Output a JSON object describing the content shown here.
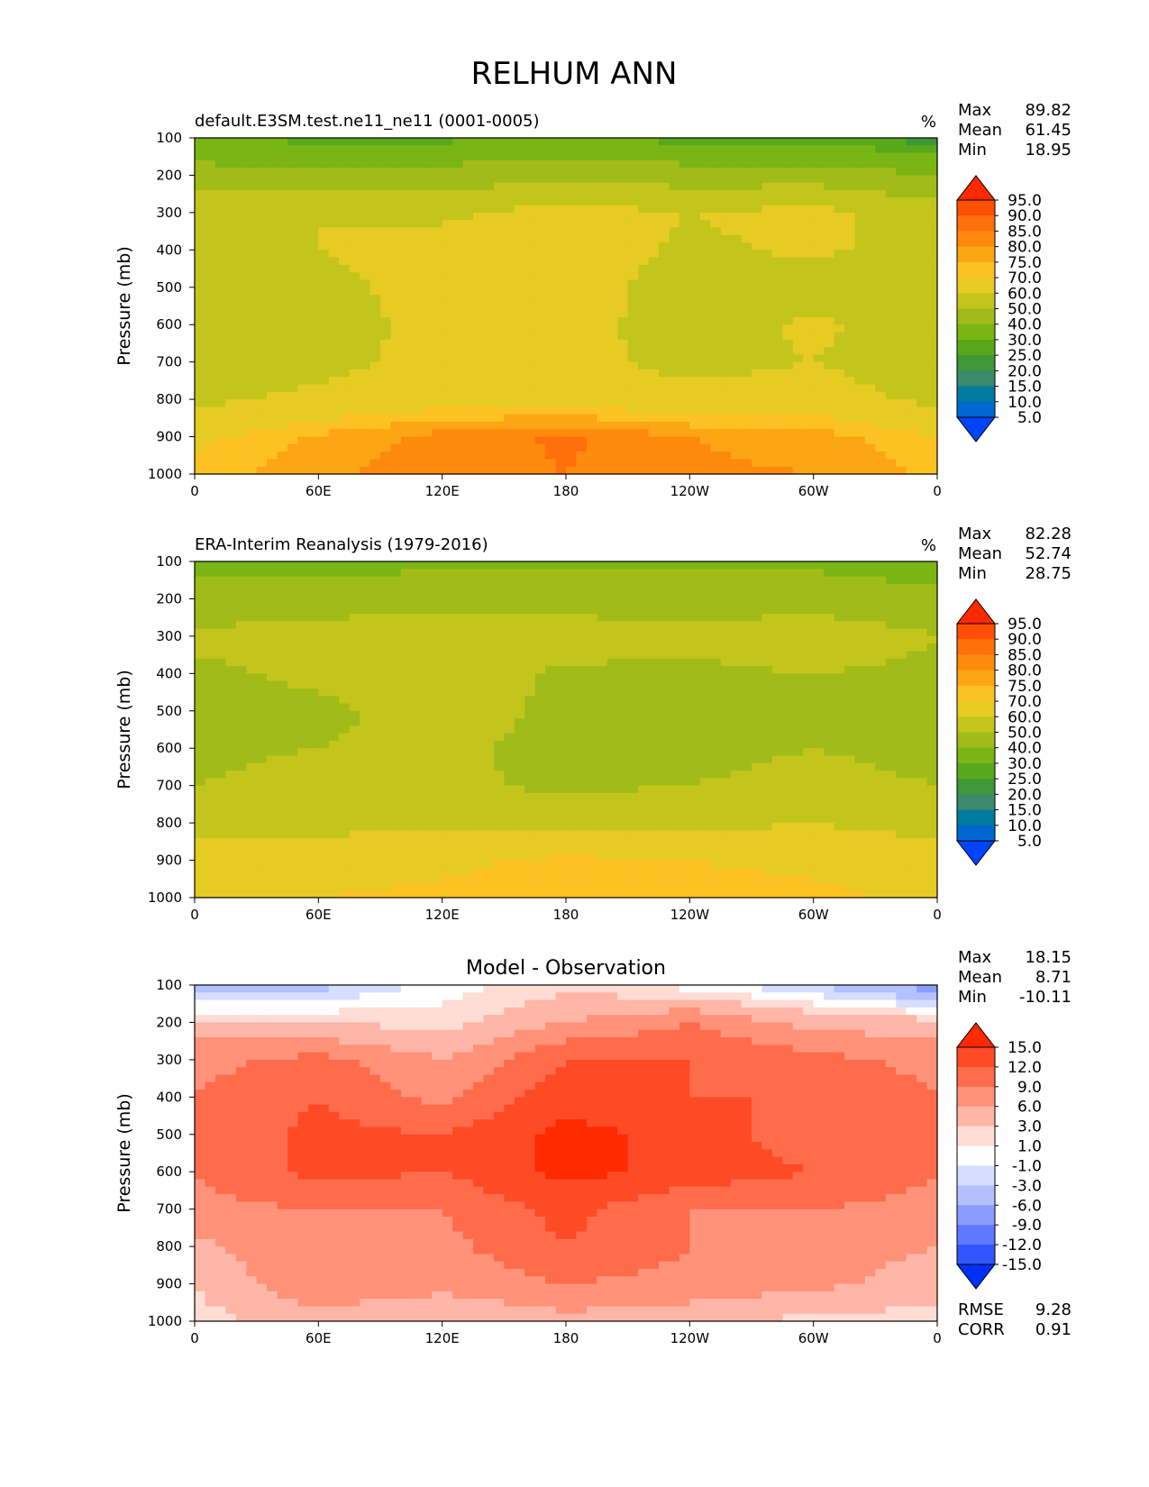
{
  "figure_title": "RELHUM ANN",
  "ylabel": "Pressure (mb)",
  "x_ticks": [
    "0",
    "60E",
    "120E",
    "180",
    "120W",
    "60W",
    "0"
  ],
  "y_ticks": [
    "100",
    "200",
    "300",
    "400",
    "500",
    "600",
    "700",
    "800",
    "900",
    "1000"
  ],
  "colors": {
    "rh_scale": [
      "#0044ff",
      "#0067d2",
      "#007ba0",
      "#3b8a6b",
      "#3f9737",
      "#57a81b",
      "#79b515",
      "#a1bc18",
      "#c4c51c",
      "#e6cb23",
      "#fcc221",
      "#fda514",
      "#fe8a0d",
      "#ff700b",
      "#ff4f07",
      "#ff2900"
    ],
    "diff_scale": [
      "#0030ff",
      "#2f55ff",
      "#5c79ff",
      "#8a9dff",
      "#b4c1ff",
      "#d6deff",
      "#ffffff",
      "#ffdcd4",
      "#ffb6a6",
      "#ff9279",
      "#ff6c4c",
      "#ff4a26",
      "#ff2a00"
    ]
  },
  "chart_data": [
    {
      "type": "heatmap",
      "name": "test",
      "title": "default.E3SM.test.ne11_ne11 (0001-0005)",
      "units": "%",
      "stats": {
        "max_label": "Max",
        "max": "89.82",
        "mean_label": "Mean",
        "mean": "61.45",
        "min_label": "Min",
        "min": "18.95"
      },
      "x": [
        0,
        60,
        120,
        180,
        240,
        300,
        360
      ],
      "x_tick_labels": [
        "0",
        "60E",
        "120E",
        "180",
        "120W",
        "60W",
        "0"
      ],
      "y": [
        100,
        200,
        300,
        400,
        500,
        600,
        700,
        800,
        900,
        1000
      ],
      "z": [
        [
          30,
          28,
          28,
          32,
          27,
          27,
          22
        ],
        [
          45,
          42,
          44,
          48,
          45,
          45,
          40
        ],
        [
          55,
          60,
          58,
          64,
          60,
          63,
          55
        ],
        [
          55,
          60,
          64,
          66,
          58,
          62,
          55
        ],
        [
          54,
          57,
          64,
          65,
          55,
          55,
          54
        ],
        [
          54,
          56,
          63,
          64,
          55,
          62,
          54
        ],
        [
          56,
          57,
          63,
          63,
          57,
          60,
          55
        ],
        [
          58,
          62,
          66,
          66,
          63,
          64,
          58
        ],
        [
          68,
          76,
          82,
          86,
          80,
          78,
          70
        ],
        [
          72,
          79,
          83,
          85,
          81,
          80,
          74
        ]
      ],
      "ylim": [
        1000,
        100
      ],
      "xlim": [
        0,
        360
      ],
      "colorbar_levels": [
        "95.0",
        "90.0",
        "85.0",
        "80.0",
        "75.0",
        "70.0",
        "60.0",
        "50.0",
        "40.0",
        "30.0",
        "25.0",
        "20.0",
        "15.0",
        "10.0",
        "5.0"
      ]
    },
    {
      "type": "heatmap",
      "name": "reference",
      "title": "ERA-Interim Reanalysis (1979-2016)",
      "units": "%",
      "stats": {
        "max_label": "Max",
        "max": "82.28",
        "mean_label": "Mean",
        "mean": "52.74",
        "min_label": "Min",
        "min": "28.75"
      },
      "x": [
        0,
        60,
        120,
        180,
        240,
        300,
        360
      ],
      "x_tick_labels": [
        "0",
        "60E",
        "120E",
        "180",
        "120W",
        "60W",
        "0"
      ],
      "y": [
        100,
        200,
        300,
        400,
        500,
        600,
        700,
        800,
        900,
        1000
      ],
      "z": [
        [
          38,
          38,
          38,
          38,
          38,
          38,
          36
        ],
        [
          43,
          44,
          45,
          45,
          45,
          45,
          42
        ],
        [
          52,
          55,
          58,
          56,
          52,
          57,
          50
        ],
        [
          48,
          52,
          56,
          48,
          48,
          50,
          48
        ],
        [
          46,
          48,
          54,
          48,
          42,
          48,
          45
        ],
        [
          48,
          50,
          52,
          47,
          48,
          50,
          48
        ],
        [
          50,
          53,
          52,
          48,
          50,
          52,
          50
        ],
        [
          56,
          57,
          58,
          57,
          57,
          60,
          56
        ],
        [
          64,
          66,
          68,
          72,
          70,
          68,
          65
        ],
        [
          68,
          70,
          72,
          74,
          74,
          72,
          68
        ]
      ],
      "ylim": [
        1000,
        100
      ],
      "xlim": [
        0,
        360
      ],
      "colorbar_levels": [
        "95.0",
        "90.0",
        "85.0",
        "80.0",
        "75.0",
        "70.0",
        "60.0",
        "50.0",
        "40.0",
        "30.0",
        "25.0",
        "20.0",
        "15.0",
        "10.0",
        "5.0"
      ]
    },
    {
      "type": "heatmap",
      "name": "difference",
      "title": "Model - Observation",
      "units": "",
      "stats": {
        "max_label": "Max",
        "max": "18.15",
        "mean_label": "Mean",
        "mean": "8.71",
        "min_label": "Min",
        "min": "-10.11"
      },
      "extra_stats": {
        "rmse_label": "RMSE",
        "rmse": "9.28",
        "corr_label": "CORR",
        "corr": "0.91"
      },
      "x": [
        0,
        60,
        120,
        180,
        240,
        300,
        360
      ],
      "x_tick_labels": [
        "0",
        "60E",
        "120E",
        "180",
        "120W",
        "60W",
        "0"
      ],
      "y": [
        100,
        200,
        300,
        400,
        500,
        600,
        700,
        800,
        900,
        1000
      ],
      "z": [
        [
          -6,
          -4,
          0,
          2,
          0,
          -3,
          -8
        ],
        [
          4,
          3,
          2,
          6,
          9,
          5,
          4
        ],
        [
          8,
          10,
          6,
          12,
          12,
          10,
          8
        ],
        [
          9,
          12,
          8,
          14,
          12,
          12,
          9
        ],
        [
          9,
          13,
          12,
          16,
          14,
          10,
          9
        ],
        [
          9,
          13,
          12,
          16,
          14,
          12,
          9
        ],
        [
          8,
          9,
          9,
          13,
          9,
          9,
          8
        ],
        [
          5,
          9,
          8,
          12,
          9,
          8,
          6
        ],
        [
          3,
          9,
          7,
          9,
          8,
          7,
          4
        ],
        [
          2,
          4,
          3,
          5,
          4,
          2,
          2
        ]
      ],
      "ylim": [
        1000,
        100
      ],
      "xlim": [
        0,
        360
      ],
      "colorbar_levels": [
        "15.0",
        "12.0",
        "9.0",
        "6.0",
        "3.0",
        "1.0",
        "-1.0",
        "-3.0",
        "-6.0",
        "-9.0",
        "-12.0",
        "-15.0"
      ]
    }
  ]
}
